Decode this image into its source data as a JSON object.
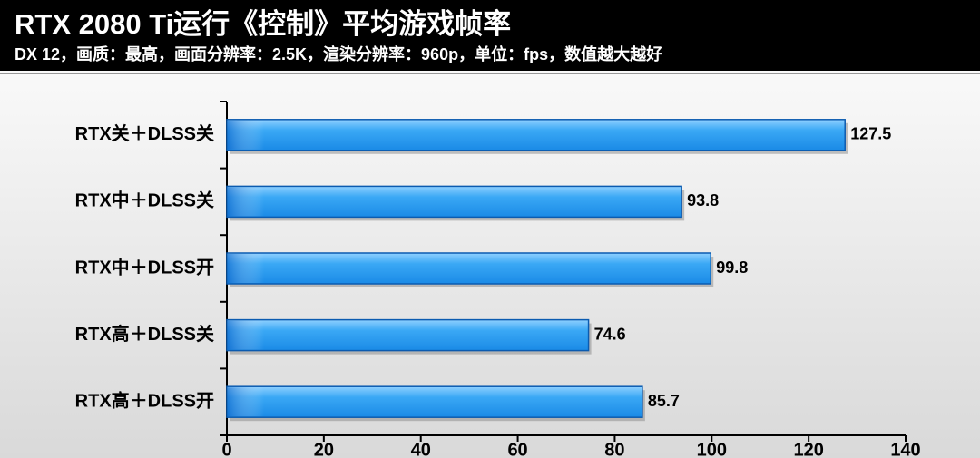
{
  "chart_data": {
    "type": "bar",
    "orientation": "horizontal",
    "title": "RTX 2080 Ti运行《控制》平均游戏帧率",
    "subtitle": "DX 12，画质：最高，画面分辨率：2.5K，渲染分辨率：960p，单位：fps，数值越大越好",
    "categories": [
      "RTX关＋DLSS关",
      "RTX中＋DLSS关",
      "RTX中＋DLSS开",
      "RTX高＋DLSS关",
      "RTX高＋DLSS开"
    ],
    "values": [
      127.5,
      93.8,
      99.8,
      74.6,
      85.7
    ],
    "color": "#1a8ae6",
    "xlim": [
      0,
      140
    ],
    "xticks": [
      0,
      20,
      40,
      60,
      80,
      100,
      120,
      140
    ]
  }
}
